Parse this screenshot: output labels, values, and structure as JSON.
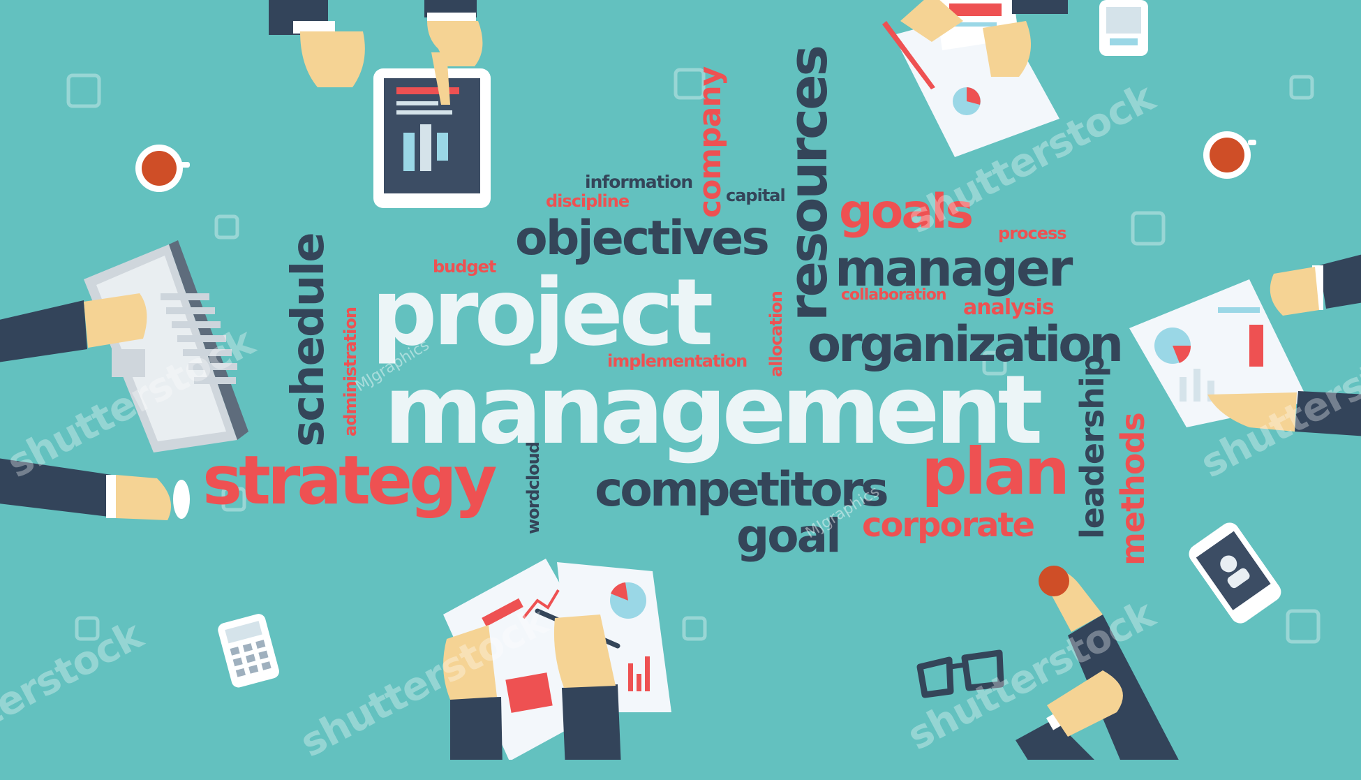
{
  "words": {
    "project": "project",
    "management": "management",
    "strategy": "strategy",
    "objectives": "objectives",
    "resources": "resources",
    "goals": "goals",
    "manager": "manager",
    "organization": "organization",
    "competitors": "competitors",
    "plan": "plan",
    "goal": "goal",
    "corporate": "corporate",
    "schedule": "schedule",
    "company": "company",
    "leadership": "leadership",
    "methods": "methods",
    "information": "information",
    "discipline": "discipline",
    "capital": "capital",
    "process": "process",
    "budget": "budget",
    "collaboration": "collaboration",
    "analysis": "analysis",
    "implementation": "implementation",
    "allocation": "allocation",
    "administration": "administration",
    "wordcloud": "wordcloud"
  },
  "watermark": {
    "brand": "shutterstock",
    "author": "MJgraphics"
  },
  "colors": {
    "background": "#63c1bf",
    "navy": "#344559",
    "red": "#ee5152",
    "white": "#ecf5f7"
  }
}
